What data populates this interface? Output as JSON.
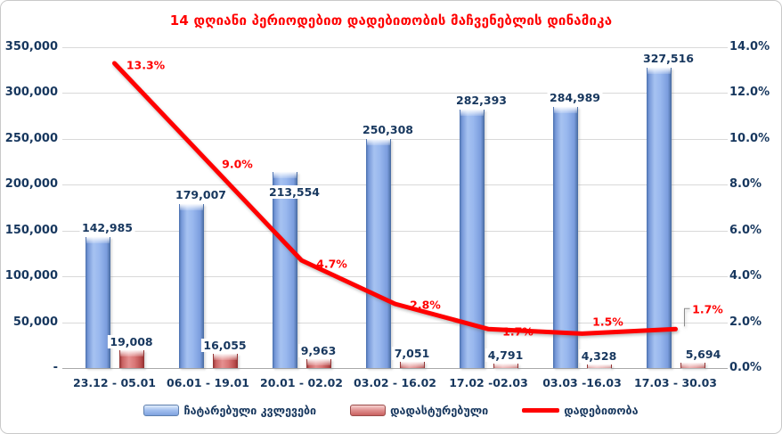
{
  "title": "14 დღიანი პერიოდებით დადებითობის მაჩვენებლის დინამიკა",
  "colors": {
    "title_text": "#FF0000",
    "axis_text": "#17375E",
    "tests_bar": "#95B3E7",
    "confirmed_bar": "#D96B6B",
    "positivity_line": "#FF0000",
    "gridline": "#D9D9D9"
  },
  "chart_data": {
    "type": "bar",
    "combo": "clustered columns (left axis) + line (right axis)",
    "title": "14 დღიანი პერიოდებით დადებითობის მაჩვენებლის დინამიკა",
    "categories": [
      "23.12 - 05.01",
      "06.01 - 19.01",
      "20.01 - 02.02",
      "03.02 - 16.02",
      "17.02 -02.03",
      "03.03 -16.03",
      "17.03 - 30.03"
    ],
    "series": [
      {
        "name": "ჩატარებული კვლევები",
        "type": "column",
        "axis": "left",
        "color": "#95B3E7",
        "values": [
          142985,
          179007,
          213554,
          250308,
          282393,
          284989,
          327516
        ],
        "labels": [
          "142,985",
          "179,007",
          "213,554",
          "250,308",
          "282,393",
          "284,989",
          "327,516"
        ]
      },
      {
        "name": "დადასტურებული",
        "type": "column",
        "axis": "left",
        "color": "#D96B6B",
        "values": [
          19008,
          16055,
          9963,
          7051,
          4791,
          4328,
          5694
        ],
        "labels": [
          "19,008",
          "16,055",
          "9,963",
          "7,051",
          "4,791",
          "4,328",
          "5,694"
        ]
      },
      {
        "name": "დადებითობა",
        "type": "line",
        "axis": "right",
        "color": "#FF0000",
        "values": [
          13.3,
          9.0,
          4.7,
          2.8,
          1.7,
          1.5,
          1.7
        ],
        "labels": [
          "13.3%",
          "9.0%",
          "4.7%",
          "2.8%",
          "1.7%",
          "1.5%",
          "1.7%"
        ]
      }
    ],
    "left_axis": {
      "min": 0,
      "max": 350000,
      "tick_step": 50000,
      "tick_labels": [
        "350,000",
        "300,000",
        "250,000",
        "200,000",
        "150,000",
        "100,000",
        "50,000",
        "-"
      ]
    },
    "right_axis": {
      "min": 0,
      "max": 14,
      "tick_step": 2,
      "tick_labels": [
        "14.0%",
        "12.0%",
        "10.0%",
        "8.0%",
        "6.0%",
        "4.0%",
        "2.0%",
        "0.0%"
      ]
    },
    "grid": true,
    "legend_position": "bottom"
  }
}
